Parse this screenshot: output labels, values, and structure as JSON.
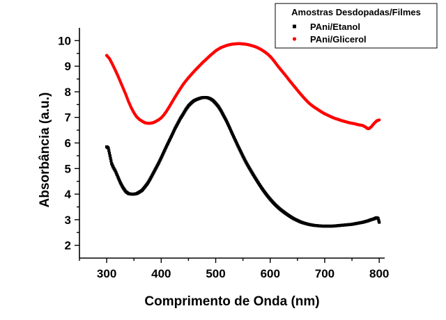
{
  "chart_data": {
    "type": "scatter",
    "title": "",
    "xlabel": "Comprimento de Onda (nm)",
    "ylabel": "Absorbância (a.u.)",
    "xlim": [
      250,
      810
    ],
    "ylim": [
      1.5,
      10.5
    ],
    "x_ticks": [
      300,
      400,
      500,
      600,
      700,
      800
    ],
    "y_ticks": [
      2,
      3,
      4,
      5,
      6,
      7,
      8,
      9,
      10
    ],
    "legend": {
      "title": "Amostras Desdopadas/Filmes",
      "placement": "top-right"
    },
    "series": [
      {
        "name": "PAni/Etanol",
        "color": "#000000",
        "marker": "square",
        "points": [
          [
            300,
            5.85
          ],
          [
            303,
            5.8
          ],
          [
            306,
            5.5
          ],
          [
            309,
            5.2
          ],
          [
            312,
            5.05
          ],
          [
            316,
            4.9
          ],
          [
            320,
            4.7
          ],
          [
            325,
            4.45
          ],
          [
            330,
            4.25
          ],
          [
            335,
            4.1
          ],
          [
            340,
            4.02
          ],
          [
            345,
            4.0
          ],
          [
            350,
            4.0
          ],
          [
            355,
            4.02
          ],
          [
            360,
            4.08
          ],
          [
            365,
            4.15
          ],
          [
            370,
            4.28
          ],
          [
            375,
            4.42
          ],
          [
            380,
            4.6
          ],
          [
            385,
            4.8
          ],
          [
            390,
            5.0
          ],
          [
            395,
            5.2
          ],
          [
            400,
            5.42
          ],
          [
            405,
            5.65
          ],
          [
            410,
            5.88
          ],
          [
            415,
            6.1
          ],
          [
            420,
            6.32
          ],
          [
            425,
            6.55
          ],
          [
            430,
            6.75
          ],
          [
            435,
            6.95
          ],
          [
            440,
            7.12
          ],
          [
            445,
            7.3
          ],
          [
            450,
            7.45
          ],
          [
            455,
            7.56
          ],
          [
            460,
            7.65
          ],
          [
            465,
            7.7
          ],
          [
            470,
            7.74
          ],
          [
            475,
            7.77
          ],
          [
            480,
            7.78
          ],
          [
            485,
            7.77
          ],
          [
            490,
            7.73
          ],
          [
            495,
            7.66
          ],
          [
            500,
            7.55
          ],
          [
            505,
            7.42
          ],
          [
            510,
            7.25
          ],
          [
            515,
            7.05
          ],
          [
            520,
            6.85
          ],
          [
            525,
            6.62
          ],
          [
            530,
            6.38
          ],
          [
            535,
            6.15
          ],
          [
            540,
            5.92
          ],
          [
            545,
            5.7
          ],
          [
            550,
            5.48
          ],
          [
            555,
            5.27
          ],
          [
            560,
            5.08
          ],
          [
            565,
            4.9
          ],
          [
            570,
            4.72
          ],
          [
            575,
            4.55
          ],
          [
            580,
            4.38
          ],
          [
            585,
            4.22
          ],
          [
            590,
            4.07
          ],
          [
            595,
            3.93
          ],
          [
            600,
            3.8
          ],
          [
            605,
            3.68
          ],
          [
            610,
            3.57
          ],
          [
            615,
            3.47
          ],
          [
            620,
            3.38
          ],
          [
            625,
            3.3
          ],
          [
            630,
            3.22
          ],
          [
            635,
            3.15
          ],
          [
            640,
            3.08
          ],
          [
            645,
            3.02
          ],
          [
            650,
            2.97
          ],
          [
            655,
            2.92
          ],
          [
            660,
            2.88
          ],
          [
            665,
            2.85
          ],
          [
            670,
            2.82
          ],
          [
            675,
            2.8
          ],
          [
            680,
            2.78
          ],
          [
            685,
            2.77
          ],
          [
            690,
            2.76
          ],
          [
            695,
            2.75
          ],
          [
            700,
            2.75
          ],
          [
            705,
            2.75
          ],
          [
            710,
            2.75
          ],
          [
            715,
            2.75
          ],
          [
            720,
            2.76
          ],
          [
            725,
            2.77
          ],
          [
            730,
            2.78
          ],
          [
            735,
            2.79
          ],
          [
            740,
            2.8
          ],
          [
            745,
            2.81
          ],
          [
            750,
            2.82
          ],
          [
            755,
            2.84
          ],
          [
            760,
            2.86
          ],
          [
            765,
            2.88
          ],
          [
            770,
            2.9
          ],
          [
            775,
            2.93
          ],
          [
            780,
            2.96
          ],
          [
            785,
            3.0
          ],
          [
            790,
            3.03
          ],
          [
            795,
            3.08
          ],
          [
            798,
            3.05
          ],
          [
            800,
            2.9
          ]
        ]
      },
      {
        "name": "PAni/Glicerol",
        "color": "#ff0000",
        "marker": "circle",
        "points": [
          [
            300,
            9.42
          ],
          [
            305,
            9.3
          ],
          [
            310,
            9.1
          ],
          [
            315,
            8.88
          ],
          [
            320,
            8.65
          ],
          [
            325,
            8.4
          ],
          [
            330,
            8.15
          ],
          [
            335,
            7.9
          ],
          [
            340,
            7.62
          ],
          [
            345,
            7.38
          ],
          [
            350,
            7.18
          ],
          [
            355,
            7.02
          ],
          [
            360,
            6.92
          ],
          [
            365,
            6.85
          ],
          [
            370,
            6.79
          ],
          [
            375,
            6.77
          ],
          [
            380,
            6.77
          ],
          [
            385,
            6.79
          ],
          [
            390,
            6.84
          ],
          [
            395,
            6.9
          ],
          [
            400,
            6.98
          ],
          [
            405,
            7.1
          ],
          [
            410,
            7.25
          ],
          [
            415,
            7.42
          ],
          [
            420,
            7.6
          ],
          [
            425,
            7.78
          ],
          [
            430,
            7.95
          ],
          [
            435,
            8.12
          ],
          [
            440,
            8.28
          ],
          [
            445,
            8.42
          ],
          [
            450,
            8.55
          ],
          [
            455,
            8.67
          ],
          [
            460,
            8.79
          ],
          [
            465,
            8.9
          ],
          [
            470,
            9.01
          ],
          [
            475,
            9.12
          ],
          [
            480,
            9.22
          ],
          [
            485,
            9.32
          ],
          [
            490,
            9.42
          ],
          [
            495,
            9.51
          ],
          [
            500,
            9.6
          ],
          [
            505,
            9.67
          ],
          [
            510,
            9.73
          ],
          [
            515,
            9.77
          ],
          [
            520,
            9.81
          ],
          [
            525,
            9.84
          ],
          [
            530,
            9.86
          ],
          [
            535,
            9.87
          ],
          [
            540,
            9.88
          ],
          [
            545,
            9.88
          ],
          [
            550,
            9.87
          ],
          [
            555,
            9.86
          ],
          [
            560,
            9.84
          ],
          [
            565,
            9.81
          ],
          [
            570,
            9.78
          ],
          [
            575,
            9.74
          ],
          [
            580,
            9.69
          ],
          [
            585,
            9.63
          ],
          [
            590,
            9.56
          ],
          [
            595,
            9.48
          ],
          [
            600,
            9.38
          ],
          [
            605,
            9.26
          ],
          [
            610,
            9.12
          ],
          [
            615,
            8.98
          ],
          [
            620,
            8.85
          ],
          [
            625,
            8.72
          ],
          [
            630,
            8.59
          ],
          [
            635,
            8.45
          ],
          [
            640,
            8.32
          ],
          [
            645,
            8.19
          ],
          [
            650,
            8.06
          ],
          [
            655,
            7.93
          ],
          [
            660,
            7.81
          ],
          [
            665,
            7.69
          ],
          [
            670,
            7.58
          ],
          [
            675,
            7.49
          ],
          [
            680,
            7.41
          ],
          [
            685,
            7.34
          ],
          [
            690,
            7.27
          ],
          [
            695,
            7.2
          ],
          [
            700,
            7.14
          ],
          [
            705,
            7.09
          ],
          [
            710,
            7.04
          ],
          [
            715,
            6.99
          ],
          [
            720,
            6.95
          ],
          [
            725,
            6.92
          ],
          [
            730,
            6.88
          ],
          [
            735,
            6.85
          ],
          [
            740,
            6.82
          ],
          [
            745,
            6.79
          ],
          [
            750,
            6.77
          ],
          [
            755,
            6.75
          ],
          [
            760,
            6.72
          ],
          [
            765,
            6.7
          ],
          [
            770,
            6.68
          ],
          [
            775,
            6.62
          ],
          [
            778,
            6.57
          ],
          [
            781,
            6.56
          ],
          [
            785,
            6.62
          ],
          [
            790,
            6.75
          ],
          [
            795,
            6.86
          ],
          [
            800,
            6.9
          ]
        ]
      }
    ]
  }
}
